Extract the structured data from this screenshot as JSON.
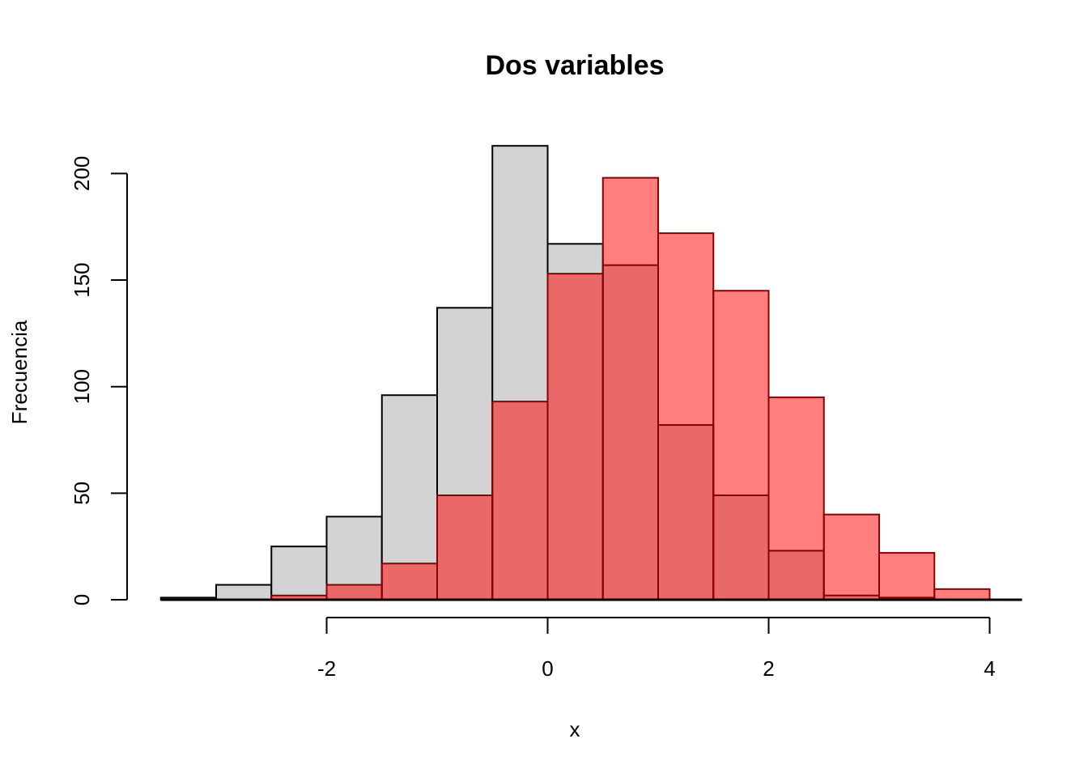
{
  "chart_data": {
    "type": "bar",
    "subtype": "overlaid-histogram",
    "title": "Dos variables",
    "xlabel": "x",
    "ylabel": "Frecuencia",
    "xlim": [
      -3.5,
      4.0
    ],
    "ylim": [
      0,
      200
    ],
    "xticks": [
      -2,
      0,
      2,
      4
    ],
    "yticks": [
      0,
      50,
      100,
      150,
      200
    ],
    "bin_edges": [
      -3.5,
      -3.0,
      -2.5,
      -2.0,
      -1.5,
      -1.0,
      -0.5,
      0.0,
      0.5,
      1.0,
      1.5,
      2.0,
      2.5,
      3.0,
      3.5,
      4.0
    ],
    "series": [
      {
        "fill": "#d3d3d3",
        "border": "#000000",
        "opacity": 1,
        "values": [
          1,
          7,
          25,
          39,
          96,
          137,
          213,
          167,
          157,
          82,
          49,
          23,
          2,
          1,
          0
        ]
      },
      {
        "fill": "#ff0000",
        "border": "#8b0000",
        "opacity": 0.5,
        "values": [
          0,
          0,
          2,
          7,
          17,
          49,
          93,
          153,
          198,
          172,
          145,
          95,
          40,
          22,
          5
        ]
      }
    ],
    "grid": false,
    "legend": "none"
  }
}
